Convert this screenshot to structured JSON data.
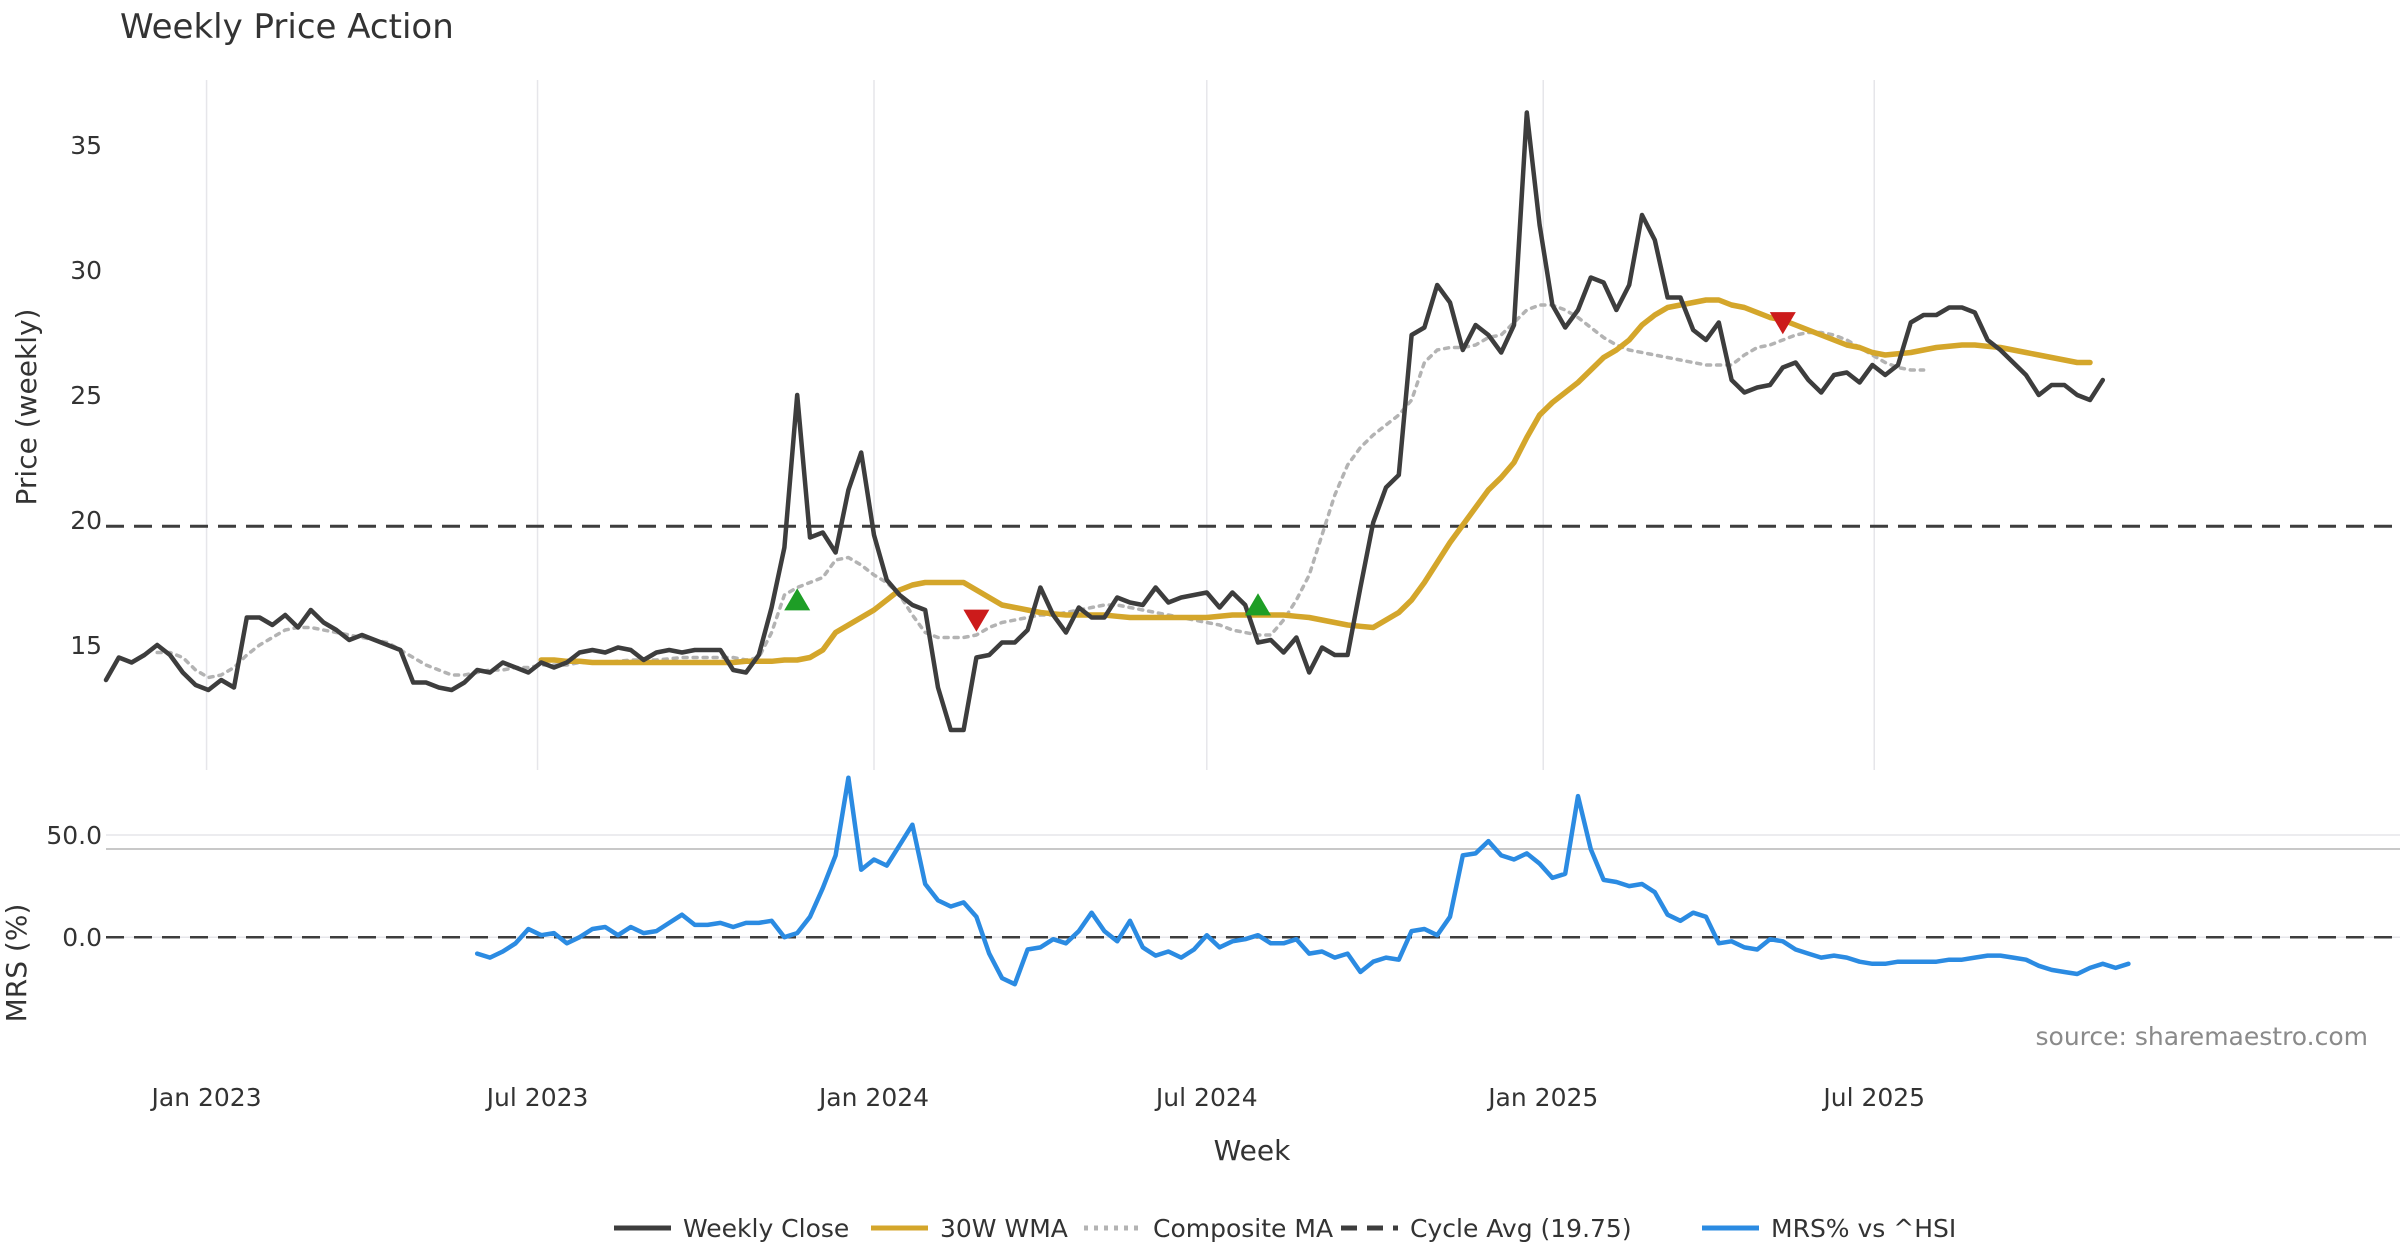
{
  "chart_data": [
    {
      "type": "line",
      "title": "Weekly Price Action",
      "ylabel": "Price (weekly)",
      "ylim": [
        10,
        37.5
      ],
      "yticks": [
        15,
        20,
        25,
        30,
        35
      ],
      "grid": true,
      "x_start": "2022-11-07",
      "x_step_days": 7,
      "series": [
        {
          "name": "Weekly Close",
          "color": "#3d3d3d",
          "style": "solid",
          "start_index": 0,
          "values": [
            13.6,
            14.5,
            14.3,
            14.6,
            15.0,
            14.6,
            13.9,
            13.4,
            13.2,
            13.6,
            13.3,
            16.1,
            16.1,
            15.8,
            16.2,
            15.7,
            16.4,
            15.9,
            15.6,
            15.2,
            15.4,
            15.2,
            15.0,
            14.8,
            13.5,
            13.5,
            13.3,
            13.2,
            13.5,
            14.0,
            13.9,
            14.3,
            14.1,
            13.9,
            14.3,
            14.1,
            14.3,
            14.7,
            14.8,
            14.7,
            14.9,
            14.8,
            14.4,
            14.7,
            14.8,
            14.7,
            14.8,
            14.8,
            14.8,
            14.0,
            13.9,
            14.6,
            16.5,
            18.9,
            25.0,
            19.3,
            19.5,
            18.7,
            21.2,
            22.7,
            19.4,
            17.6,
            17.0,
            16.6,
            16.4,
            13.3,
            11.6,
            11.6,
            14.5,
            14.6,
            15.1,
            15.1,
            15.6,
            17.3,
            16.2,
            15.5,
            16.5,
            16.1,
            16.1,
            16.9,
            16.7,
            16.6,
            17.3,
            16.7,
            16.9,
            17.0,
            17.1,
            16.5,
            17.1,
            16.6,
            15.1,
            15.2,
            14.7,
            15.3,
            13.9,
            14.9,
            14.6,
            14.6,
            17.3,
            19.9,
            21.3,
            21.8,
            27.4,
            27.7,
            29.4,
            28.7,
            26.8,
            27.8,
            27.4,
            26.7,
            27.8,
            36.3,
            31.8,
            28.6,
            27.7,
            28.4,
            29.7,
            29.5,
            28.4,
            29.4,
            32.2,
            31.2,
            28.9,
            28.9,
            27.6,
            27.2,
            27.9,
            25.6,
            25.1,
            25.3,
            25.4,
            26.1,
            26.3,
            25.6,
            25.1,
            25.8,
            25.9,
            25.5,
            26.2,
            25.8,
            26.2,
            27.9,
            28.2,
            28.2,
            28.5,
            28.5,
            28.3,
            27.2,
            26.8,
            26.3,
            25.8,
            25.0,
            25.4,
            25.4,
            25.0,
            24.8,
            25.6
          ]
        },
        {
          "name": "30W WMA",
          "color": "#d4a62b",
          "style": "solid",
          "start_index": 34,
          "values": [
            14.4,
            14.4,
            14.35,
            14.35,
            14.3,
            14.3,
            14.3,
            14.3,
            14.3,
            14.3,
            14.3,
            14.3,
            14.3,
            14.3,
            14.3,
            14.3,
            14.35,
            14.35,
            14.35,
            14.4,
            14.4,
            14.5,
            14.8,
            15.5,
            15.8,
            16.1,
            16.4,
            16.8,
            17.2,
            17.4,
            17.5,
            17.5,
            17.5,
            17.5,
            17.2,
            16.9,
            16.6,
            16.5,
            16.4,
            16.3,
            16.25,
            16.2,
            16.2,
            16.2,
            16.2,
            16.15,
            16.1,
            16.1,
            16.1,
            16.1,
            16.1,
            16.1,
            16.1,
            16.15,
            16.2,
            16.2,
            16.2,
            16.2,
            16.2,
            16.15,
            16.1,
            16.0,
            15.9,
            15.8,
            15.75,
            15.7,
            16.0,
            16.3,
            16.8,
            17.5,
            18.3,
            19.1,
            19.8,
            20.5,
            21.2,
            21.7,
            22.3,
            23.3,
            24.2,
            24.7,
            25.1,
            25.5,
            26.0,
            26.5,
            26.8,
            27.2,
            27.8,
            28.2,
            28.5,
            28.6,
            28.7,
            28.8,
            28.8,
            28.6,
            28.5,
            28.3,
            28.1,
            28.0,
            27.8,
            27.6,
            27.4,
            27.2,
            27.0,
            26.9,
            26.7,
            26.6,
            26.65,
            26.7,
            26.8,
            26.9,
            26.95,
            27.0,
            27.0,
            26.95,
            26.9,
            26.8,
            26.7,
            26.6,
            26.5,
            26.4,
            26.3,
            26.3
          ]
        },
        {
          "name": "Composite MA",
          "color": "#b3b3b3",
          "style": "dotted",
          "start_index": 4,
          "values": [
            14.7,
            14.7,
            14.5,
            14.0,
            13.7,
            13.8,
            14.1,
            14.6,
            15.0,
            15.3,
            15.6,
            15.7,
            15.7,
            15.6,
            15.5,
            15.4,
            15.3,
            15.2,
            15.1,
            14.8,
            14.5,
            14.2,
            14.0,
            13.8,
            13.8,
            13.9,
            14.0,
            14.0,
            14.1,
            14.1,
            14.2,
            14.2,
            14.2,
            14.3,
            14.3,
            14.3,
            14.35,
            14.4,
            14.4,
            14.4,
            14.45,
            14.5,
            14.5,
            14.5,
            14.5,
            14.5,
            14.4,
            14.5,
            15.5,
            17.0,
            17.3,
            17.5,
            17.7,
            18.4,
            18.5,
            18.2,
            17.8,
            17.5,
            17.0,
            16.2,
            15.5,
            15.3,
            15.3,
            15.3,
            15.4,
            15.7,
            15.9,
            16.0,
            16.1,
            16.2,
            16.2,
            16.3,
            16.4,
            16.5,
            16.6,
            16.6,
            16.5,
            16.4,
            16.3,
            16.2,
            16.1,
            16.0,
            15.9,
            15.8,
            15.6,
            15.5,
            15.4,
            15.4,
            16.0,
            16.8,
            17.8,
            19.4,
            21.0,
            22.2,
            22.9,
            23.4,
            23.8,
            24.2,
            24.8,
            26.3,
            26.8,
            26.9,
            26.9,
            27.0,
            27.3,
            27.4,
            27.9,
            28.4,
            28.6,
            28.6,
            28.4,
            28.1,
            27.7,
            27.3,
            27.0,
            26.8,
            26.7,
            26.6,
            26.5,
            26.4,
            26.3,
            26.2,
            26.2,
            26.2,
            26.6,
            26.9,
            27.0,
            27.2,
            27.4,
            27.5,
            27.5,
            27.4,
            27.2,
            26.9,
            26.6,
            26.3,
            26.1,
            26.0,
            26.0
          ]
        }
      ],
      "reference_line": {
        "name": "Cycle Avg (19.75)",
        "value": 19.75,
        "color": "#3d3d3d",
        "style": "dashed"
      },
      "markers": [
        {
          "index": 54,
          "value": 16.8,
          "direction": "up",
          "color": "#1e9e26"
        },
        {
          "index": 68,
          "value": 16.0,
          "direction": "down",
          "color": "#cc1b1b"
        },
        {
          "index": 90,
          "value": 16.6,
          "direction": "up",
          "color": "#1e9e26"
        },
        {
          "index": 131,
          "value": 27.9,
          "direction": "down",
          "color": "#cc1b1b"
        }
      ]
    },
    {
      "type": "line",
      "ylabel": "MRS (%)",
      "xlabel": "Week",
      "ylim": [
        -40,
        80
      ],
      "yticks": [
        "0.0",
        "50.0"
      ],
      "ytick_values": [
        0,
        50
      ],
      "grid": true,
      "x_tick_labels": [
        "Jan 2023",
        "Jul 2023",
        "Jan 2024",
        "Jul 2024",
        "Jan 2025",
        "Jul 2025"
      ],
      "x_tick_dates": [
        "2023-01-01",
        "2023-07-01",
        "2024-01-01",
        "2024-07-01",
        "2025-01-01",
        "2025-07-01"
      ],
      "series": [
        {
          "name": "MRS% vs ^HSI",
          "color": "#2b8be2",
          "style": "solid",
          "start_index": 29,
          "values": [
            -8,
            -10,
            -7,
            -3,
            4,
            1,
            2,
            -3,
            0,
            4,
            5,
            1,
            5,
            2,
            3,
            7,
            11,
            6,
            6,
            7,
            5,
            7,
            7,
            8,
            0,
            2,
            10,
            24,
            40,
            78,
            33,
            38,
            35,
            45,
            55,
            26,
            18,
            15,
            17,
            10,
            -8,
            -20,
            -23,
            -6,
            -5,
            -1,
            -3,
            3,
            12,
            3,
            -2,
            8,
            -5,
            -9,
            -7,
            -10,
            -6,
            1,
            -5,
            -2,
            -1,
            1,
            -3,
            -3,
            -1,
            -8,
            -7,
            -10,
            -8,
            -17,
            -12,
            -10,
            -11,
            3,
            4,
            1,
            10,
            40,
            41,
            47,
            40,
            38,
            41,
            36,
            29,
            31,
            69,
            43,
            28,
            27,
            25,
            26,
            22,
            11,
            8,
            12,
            10,
            -3,
            -2,
            -5,
            -6,
            -1,
            -2,
            -6,
            -8,
            -10,
            -9,
            -10,
            -12,
            -13,
            -13,
            -12,
            -12,
            -12,
            -12,
            -11,
            -11,
            -10,
            -9,
            -9,
            -10,
            -11,
            -14,
            -16,
            -17,
            -18,
            -15,
            -13,
            -15,
            -13
          ]
        }
      ],
      "reference_line": {
        "value": 0,
        "color": "#3d3d3d",
        "style": "dashed"
      }
    }
  ],
  "legend": [
    {
      "label": "Weekly Close",
      "color": "#3d3d3d",
      "style": "solid"
    },
    {
      "label": "30W WMA",
      "color": "#d4a62b",
      "style": "solid"
    },
    {
      "label": "Composite MA",
      "color": "#b3b3b3",
      "style": "dotted"
    },
    {
      "label": "Cycle Avg (19.75)",
      "color": "#3d3d3d",
      "style": "dashed"
    },
    {
      "label": "MRS% vs ^HSI",
      "color": "#2b8be2",
      "style": "solid"
    }
  ],
  "legend_position": "bottom-center",
  "source_text": "source: sharemaestro.com"
}
